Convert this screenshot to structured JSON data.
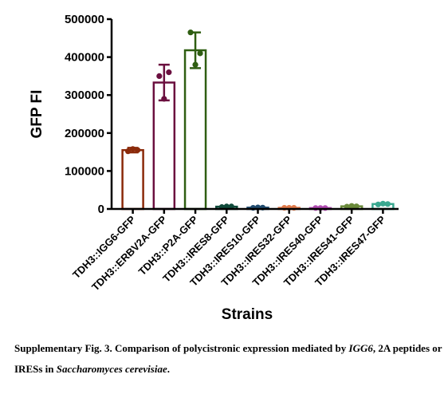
{
  "chart_data": {
    "type": "bar",
    "ylabel": "GFP FI",
    "xlabel": "Strains",
    "ylim": [
      0,
      500000
    ],
    "yticks": [
      "0",
      "100000",
      "200000",
      "300000",
      "400000",
      "500000"
    ],
    "categories": [
      "TDH3::IGG6-GFP",
      "TDH3::ERBV2A-GFP",
      "TDH3::P2A-GFP",
      "TDH3::IRES8-GFP",
      "TDH3::IRES10-GFP",
      "TDH3::IRES32-GFP",
      "TDH3::IRES40-GFP",
      "TDH3::IRES41-GFP",
      "TDH3::IRES47-GFP"
    ],
    "values": [
      155000,
      333000,
      418000,
      6000,
      3500,
      3000,
      2500,
      7000,
      13000
    ],
    "errors": [
      6000,
      47000,
      47000,
      1500,
      1000,
      1000,
      1000,
      2000,
      2000
    ],
    "points": [
      [
        152000,
        158000,
        155000
      ],
      [
        350000,
        290000,
        360000
      ],
      [
        465000,
        380000,
        410000
      ],
      [
        5000,
        6500,
        6500
      ],
      [
        3000,
        4000,
        3500
      ],
      [
        3000,
        3000,
        3000
      ],
      [
        2500,
        2500,
        2500
      ],
      [
        6000,
        8000,
        7000
      ],
      [
        12000,
        14000,
        13000
      ]
    ],
    "colors": [
      "#8b2a0a",
      "#6b0f3f",
      "#2f5e12",
      "#0f4a3a",
      "#1f4a6e",
      "#e07a4a",
      "#b04ab0",
      "#6a8a3a",
      "#3aa890"
    ]
  },
  "caption": {
    "prefix": "Supplementary Fig. 3. Comparison of polycistronic expression mediated by ",
    "gene": "IGG6",
    "middle": ", 2A peptides or IRESs in ",
    "species": "Saccharomyces cerevisiae",
    "suffix": "."
  }
}
